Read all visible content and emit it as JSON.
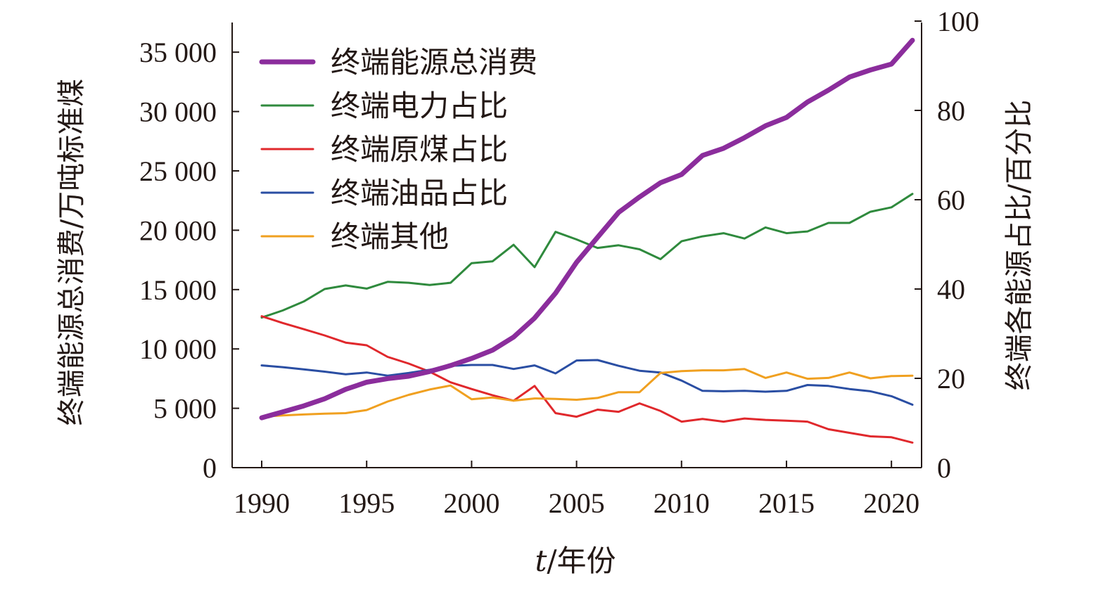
{
  "chart_data": {
    "type": "line",
    "x": [
      1990,
      1991,
      1992,
      1993,
      1994,
      1995,
      1996,
      1997,
      1998,
      1999,
      2000,
      2001,
      2002,
      2003,
      2004,
      2005,
      2006,
      2007,
      2008,
      2009,
      2010,
      2011,
      2012,
      2013,
      2014,
      2015,
      2016,
      2017,
      2018,
      2019,
      2020,
      2021
    ],
    "xlim": [
      1990,
      2021
    ],
    "xticks": [
      1990,
      1995,
      2000,
      2005,
      2010,
      2015,
      2020
    ],
    "xticks_labels": [
      "1990",
      "1995",
      "2000",
      "2005",
      "2010",
      "2015",
      "2020"
    ],
    "xlabel_italic": "t",
    "xlabel_rest": "/年份",
    "y_left": {
      "label": "终端能源总消费/万吨标准煤",
      "lim": [
        0,
        37500
      ],
      "ticks": [
        0,
        5000,
        10000,
        15000,
        20000,
        25000,
        30000,
        35000
      ],
      "tick_labels": [
        "0",
        "5 000",
        "10 000",
        "15 000",
        "20 000",
        "25 000",
        "30 000",
        "35 000"
      ]
    },
    "y_right": {
      "label": "终端各能源占比/百分比",
      "lim": [
        0,
        100
      ],
      "ticks": [
        0,
        20,
        40,
        60,
        80,
        100
      ],
      "tick_labels": [
        "0",
        "20",
        "40",
        "60",
        "80",
        "100"
      ]
    },
    "grid": false,
    "legend_position": "top-left",
    "series": [
      {
        "name": "终端能源总消费",
        "axis": "left",
        "color": "#8b2d9c",
        "thick": true,
        "values": [
          4200,
          4700,
          5200,
          5800,
          6600,
          7200,
          7500,
          7700,
          8100,
          8600,
          9200,
          9900,
          11000,
          12600,
          14700,
          17300,
          19400,
          21500,
          22800,
          24000,
          24700,
          26300,
          26900,
          27800,
          28800,
          29500,
          30800,
          31800,
          32900,
          33500,
          34000,
          36000
        ]
      },
      {
        "name": "终端电力占比",
        "axis": "right",
        "color": "#2f8a3d",
        "thick": false,
        "values": [
          33.6,
          35.2,
          37.2,
          40.0,
          40.8,
          40.1,
          41.6,
          41.4,
          40.9,
          41.4,
          45.8,
          46.2,
          49.9,
          44.9,
          52.8,
          51.1,
          49.2,
          49.8,
          48.9,
          46.7,
          50.7,
          51.8,
          52.5,
          51.3,
          53.8,
          52.5,
          52.9,
          54.8,
          54.8,
          57.3,
          58.3,
          61.3
        ]
      },
      {
        "name": "终端原煤占比",
        "axis": "right",
        "color": "#e0282c",
        "thick": false,
        "values": [
          33.9,
          32.4,
          31.0,
          29.6,
          28.0,
          27.4,
          24.8,
          23.3,
          21.5,
          19.1,
          17.6,
          16.2,
          15.0,
          18.3,
          12.2,
          11.4,
          13.0,
          12.5,
          14.4,
          12.7,
          10.3,
          10.9,
          10.3,
          11.0,
          10.7,
          10.5,
          10.3,
          8.6,
          7.8,
          7.0,
          6.8,
          5.6
        ]
      },
      {
        "name": "终端油品占比",
        "axis": "right",
        "color": "#2a4ea3",
        "thick": false,
        "values": [
          22.9,
          22.5,
          22.0,
          21.5,
          20.9,
          21.3,
          20.6,
          21.2,
          21.9,
          22.8,
          23.0,
          23.0,
          22.1,
          22.9,
          21.1,
          24.0,
          24.1,
          22.8,
          21.7,
          21.3,
          19.5,
          17.2,
          17.1,
          17.2,
          17.0,
          17.2,
          18.5,
          18.3,
          17.6,
          17.1,
          16.0,
          14.1
        ]
      },
      {
        "name": "终端其他",
        "axis": "right",
        "color": "#f0a020",
        "thick": false,
        "values": [
          11.4,
          11.7,
          11.9,
          12.1,
          12.2,
          12.9,
          14.8,
          16.3,
          17.5,
          18.4,
          15.3,
          15.7,
          15.0,
          15.5,
          15.4,
          15.2,
          15.6,
          16.9,
          16.9,
          21.2,
          21.6,
          21.8,
          21.8,
          22.1,
          20.1,
          21.3,
          19.9,
          20.1,
          21.3,
          20.0,
          20.5,
          20.6
        ]
      }
    ]
  }
}
